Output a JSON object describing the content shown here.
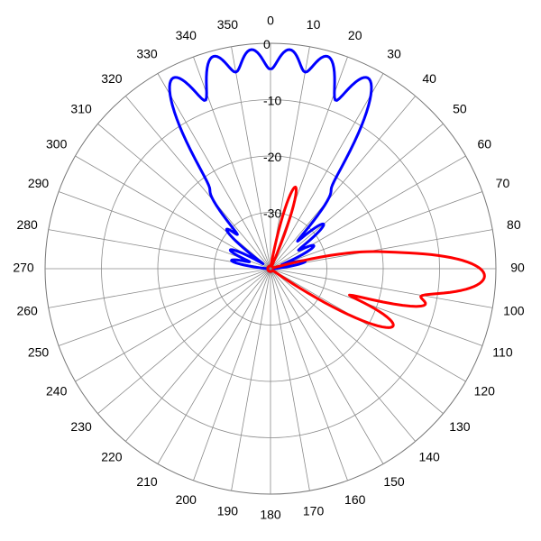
{
  "chart_data": {
    "type": "polar",
    "angle_direction": "clockwise",
    "zero_angle": "top",
    "angle_ticks": [
      0,
      10,
      20,
      30,
      40,
      50,
      60,
      70,
      80,
      90,
      100,
      110,
      120,
      130,
      140,
      150,
      160,
      170,
      180,
      190,
      200,
      210,
      220,
      230,
      240,
      250,
      260,
      270,
      280,
      290,
      300,
      310,
      320,
      330,
      340,
      350
    ],
    "radial_unit": "dB",
    "r_max": 0,
    "r_min": -40,
    "radial_rings": [
      0,
      -10,
      -20,
      -30
    ],
    "radial_tick_labels": [
      "0",
      "-10",
      "-20",
      "-30"
    ],
    "grid": true,
    "legend": "none",
    "series": [
      {
        "color": "#0000ff",
        "approximate": true,
        "lobes": [
          {
            "angle": -5,
            "peak": -1,
            "width": 6
          },
          {
            "angle": 5,
            "peak": -1,
            "width": 6
          },
          {
            "angle": -15,
            "peak": -1,
            "width": 6
          },
          {
            "angle": 15,
            "peak": -1,
            "width": 6
          },
          {
            "angle": -27,
            "peak": -2,
            "width": 6
          },
          {
            "angle": 27,
            "peak": -2,
            "width": 6
          },
          {
            "angle": -38,
            "peak": -23,
            "width": 5
          },
          {
            "angle": 38,
            "peak": -23,
            "width": 5
          },
          {
            "angle": -48,
            "peak": -30,
            "width": 6
          },
          {
            "angle": 50,
            "peak": -28,
            "width": 6
          },
          {
            "angle": -65,
            "peak": -33,
            "width": 7
          },
          {
            "angle": 62,
            "peak": -32,
            "width": 7
          },
          {
            "angle": -78,
            "peak": -34,
            "width": 7
          },
          {
            "angle": 78,
            "peak": -35,
            "width": 7
          },
          {
            "angle": -10,
            "peak": -25,
            "width": 4
          },
          {
            "angle": 10,
            "peak": -25,
            "width": 4
          },
          {
            "angle": -21,
            "peak": -26,
            "width": 4
          },
          {
            "angle": 21,
            "peak": -26,
            "width": 4
          },
          {
            "angle": 0,
            "peak": -28,
            "width": 4
          },
          {
            "angle": -33,
            "peak": -29,
            "width": 4
          },
          {
            "angle": 33,
            "peak": -29,
            "width": 4
          }
        ],
        "floor": -39.5
      },
      {
        "color": "#ff0000",
        "approximate": true,
        "lobes": [
          {
            "angle": 92,
            "peak": -2,
            "width": 7
          },
          {
            "angle": 103,
            "peak": -12,
            "width": 4
          },
          {
            "angle": 115,
            "peak": -16,
            "width": 6
          },
          {
            "angle": 82,
            "peak": -22,
            "width": 5
          },
          {
            "angle": 17,
            "peak": -25,
            "width": 5
          }
        ],
        "floor": -39.5
      }
    ]
  }
}
